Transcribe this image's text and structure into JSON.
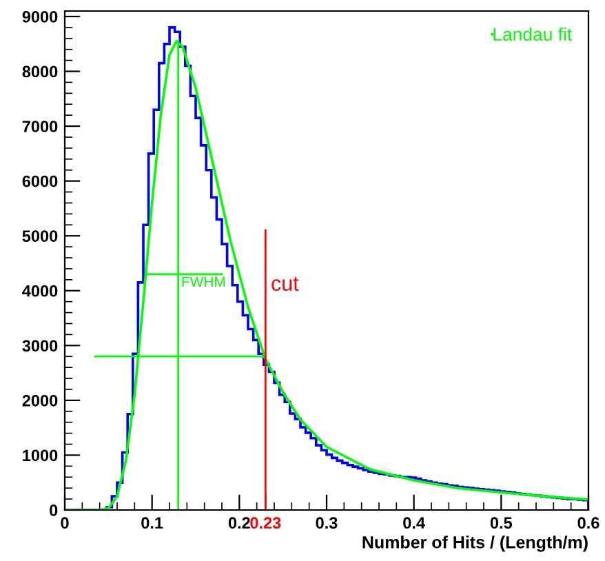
{
  "chart_data": {
    "type": "histogram",
    "xlabel": "Number of Hits / (Length/m)",
    "xlim": [
      0,
      0.6
    ],
    "ylim": [
      0,
      9100
    ],
    "xticks": [
      0,
      0.1,
      0.2,
      0.23,
      0.3,
      0.4,
      0.5,
      0.6
    ],
    "yticks": [
      0,
      1000,
      2000,
      3000,
      4000,
      5000,
      6000,
      7000,
      8000,
      9000
    ],
    "grid": false,
    "legend": "top right",
    "annotations": [
      "FWHM"
    ],
    "series": [
      {
        "color": "#0000ff",
        "bins": [
          0,
          0.006,
          0.012,
          0.018,
          0.024,
          0.03,
          0.036,
          0.042,
          0.048,
          0.054,
          0.06,
          0.066,
          0.072,
          0.078,
          0.084,
          0.09,
          0.096,
          0.102,
          0.108,
          0.114,
          0.12,
          0.126,
          0.132,
          0.138,
          0.144,
          0.15,
          0.156,
          0.162,
          0.168,
          0.174,
          0.18,
          0.186,
          0.192,
          0.198,
          0.204,
          0.21,
          0.216,
          0.222,
          0.228,
          0.234,
          0.24,
          0.246,
          0.252,
          0.258,
          0.264,
          0.27,
          0.276,
          0.282,
          0.288,
          0.294,
          0.3,
          0.306,
          0.312,
          0.318,
          0.324,
          0.33,
          0.336,
          0.342,
          0.348,
          0.354,
          0.36,
          0.366,
          0.372,
          0.378,
          0.384,
          0.39,
          0.396,
          0.402,
          0.408,
          0.414,
          0.42,
          0.426,
          0.432,
          0.438,
          0.444,
          0.45,
          0.456,
          0.462,
          0.468,
          0.474,
          0.48,
          0.486,
          0.492,
          0.498,
          0.504,
          0.51,
          0.516,
          0.522,
          0.528,
          0.534,
          0.54,
          0.546,
          0.552,
          0.558,
          0.564,
          0.57,
          0.576,
          0.582,
          0.588,
          0.594,
          0.6
        ],
        "values": [
          0,
          0,
          0,
          0,
          0,
          0,
          0,
          0,
          50,
          250,
          500,
          1050,
          1750,
          2850,
          4150,
          5200,
          6500,
          7300,
          8150,
          8500,
          8800,
          8720,
          8450,
          8100,
          7550,
          7150,
          6650,
          6200,
          5700,
          5300,
          4850,
          4450,
          4100,
          3800,
          3550,
          3300,
          3100,
          2850,
          2650,
          2520,
          2320,
          2100,
          1970,
          1760,
          1660,
          1510,
          1410,
          1310,
          1180,
          1090,
          1010,
          950,
          900,
          860,
          820,
          790,
          760,
          730,
          700,
          680,
          660,
          650,
          630,
          620,
          600,
          600,
          590,
          570,
          540,
          520,
          500,
          480,
          470,
          450,
          440,
          420,
          410,
          400,
          390,
          380,
          370,
          360,
          350,
          340,
          330,
          320,
          300,
          290,
          280,
          270,
          260,
          250,
          240,
          230,
          220,
          210,
          200,
          200,
          190,
          180
        ]
      },
      {
        "type": "line",
        "name": "Landau fit",
        "color": "#00ff00",
        "x": [
          0,
          0.04,
          0.05,
          0.06,
          0.07,
          0.08,
          0.09,
          0.1,
          0.11,
          0.12,
          0.128,
          0.135,
          0.15,
          0.17,
          0.19,
          0.21,
          0.23,
          0.25,
          0.27,
          0.3,
          0.35,
          0.4,
          0.45,
          0.5,
          0.55,
          0.6
        ],
        "values": [
          0,
          0,
          30,
          250,
          900,
          2100,
          3800,
          5600,
          7200,
          8300,
          8550,
          8450,
          7700,
          6300,
          4900,
          3700,
          2750,
          2150,
          1650,
          1150,
          740,
          540,
          400,
          320,
          250,
          190
        ]
      },
      {
        "type": "line",
        "color": "#00ff00",
        "x": [
          0.13,
          0.13
        ],
        "values": [
          0,
          8550
        ]
      },
      {
        "type": "line",
        "color": "#00ff00",
        "x": [
          0.095,
          0.18
        ],
        "values": [
          4300,
          4300
        ]
      },
      {
        "type": "line",
        "color": "#00ff00",
        "x": [
          0.035,
          0.23
        ],
        "values": [
          2800,
          2800
        ]
      },
      {
        "type": "line",
        "name": "cut",
        "color": "#ff0000",
        "x": [
          0.23,
          0.23
        ],
        "values": [
          0,
          5100
        ]
      }
    ]
  }
}
